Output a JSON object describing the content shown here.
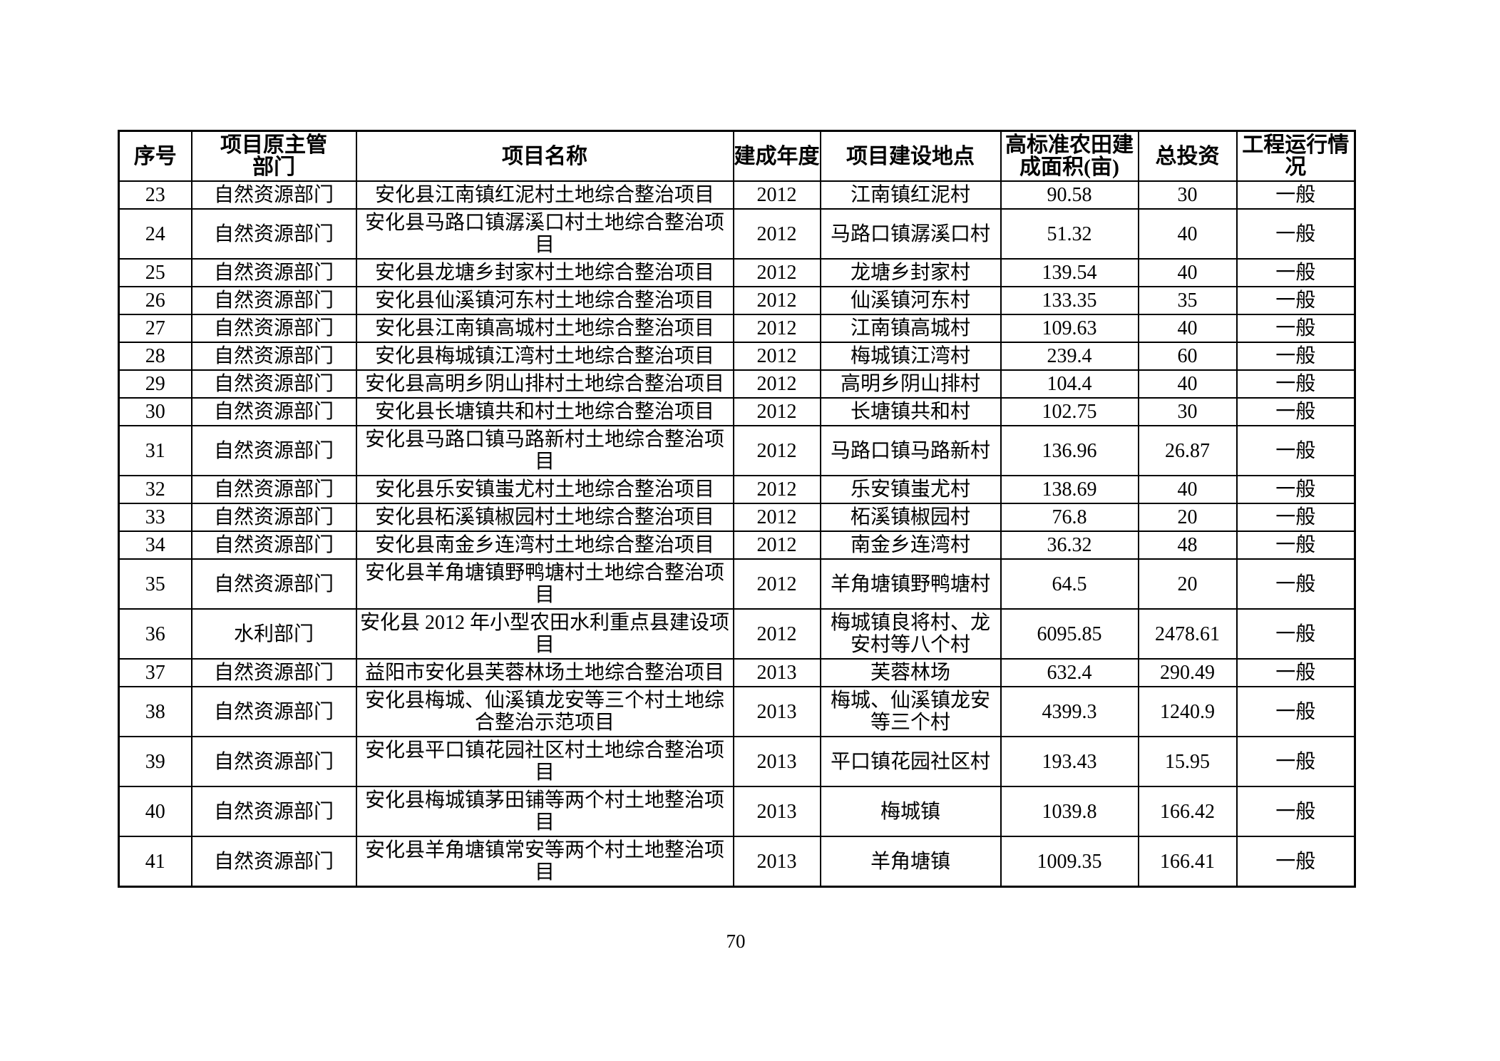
{
  "page": {
    "number": "70"
  },
  "table": {
    "headers": [
      {
        "key": "index",
        "label": "序号"
      },
      {
        "key": "department",
        "label": "项目原主管\n部门"
      },
      {
        "key": "name",
        "label": "项目名称"
      },
      {
        "key": "year",
        "label": "建成年度"
      },
      {
        "key": "location",
        "label": "项目建设地点"
      },
      {
        "key": "area",
        "label": "高标准农田建\n成面积(亩)"
      },
      {
        "key": "investment",
        "label": "总投资"
      },
      {
        "key": "status",
        "label": "工程运行情\n况"
      }
    ],
    "rows": [
      [
        "23",
        "自然资源部门",
        "安化县江南镇红泥村土地综合整治项目",
        "2012",
        "江南镇红泥村",
        "90.58",
        "30",
        "一般"
      ],
      [
        "24",
        "自然资源部门",
        "安化县马路口镇潺溪口村土地综合整治项目",
        "2012",
        "马路口镇潺溪口村",
        "51.32",
        "40",
        "一般"
      ],
      [
        "25",
        "自然资源部门",
        "安化县龙塘乡封家村土地综合整治项目",
        "2012",
        "龙塘乡封家村",
        "139.54",
        "40",
        "一般"
      ],
      [
        "26",
        "自然资源部门",
        "安化县仙溪镇河东村土地综合整治项目",
        "2012",
        "仙溪镇河东村",
        "133.35",
        "35",
        "一般"
      ],
      [
        "27",
        "自然资源部门",
        "安化县江南镇高城村土地综合整治项目",
        "2012",
        "江南镇高城村",
        "109.63",
        "40",
        "一般"
      ],
      [
        "28",
        "自然资源部门",
        "安化县梅城镇江湾村土地综合整治项目",
        "2012",
        "梅城镇江湾村",
        "239.4",
        "60",
        "一般"
      ],
      [
        "29",
        "自然资源部门",
        "安化县高明乡阴山排村土地综合整治项目",
        "2012",
        "高明乡阴山排村",
        "104.4",
        "40",
        "一般"
      ],
      [
        "30",
        "自然资源部门",
        "安化县长塘镇共和村土地综合整治项目",
        "2012",
        "长塘镇共和村",
        "102.75",
        "30",
        "一般"
      ],
      [
        "31",
        "自然资源部门",
        "安化县马路口镇马路新村土地综合整治项目",
        "2012",
        "马路口镇马路新村",
        "136.96",
        "26.87",
        "一般"
      ],
      [
        "32",
        "自然资源部门",
        "安化县乐安镇蚩尤村土地综合整治项目",
        "2012",
        "乐安镇蚩尤村",
        "138.69",
        "40",
        "一般"
      ],
      [
        "33",
        "自然资源部门",
        "安化县柘溪镇椒园村土地综合整治项目",
        "2012",
        "柘溪镇椒园村",
        "76.8",
        "20",
        "一般"
      ],
      [
        "34",
        "自然资源部门",
        "安化县南金乡连湾村土地综合整治项目",
        "2012",
        "南金乡连湾村",
        "36.32",
        "48",
        "一般"
      ],
      [
        "35",
        "自然资源部门",
        "安化县羊角塘镇野鸭塘村土地综合整治项目",
        "2012",
        "羊角塘镇野鸭塘村",
        "64.5",
        "20",
        "一般"
      ],
      [
        "36",
        "水利部门",
        "安化县 2012 年小型农田水利重点县建设项目",
        "2012",
        "梅城镇良将村、龙安村等八个村",
        "6095.85",
        "2478.61",
        "一般"
      ],
      [
        "37",
        "自然资源部门",
        "益阳市安化县芙蓉林场土地综合整治项目",
        "2013",
        "芙蓉林场",
        "632.4",
        "290.49",
        "一般"
      ],
      [
        "38",
        "自然资源部门",
        "安化县梅城、仙溪镇龙安等三个村土地综合整治示范项目",
        "2013",
        "梅城、仙溪镇龙安等三个村",
        "4399.3",
        "1240.9",
        "一般"
      ],
      [
        "39",
        "自然资源部门",
        "安化县平口镇花园社区村土地综合整治项目",
        "2013",
        "平口镇花园社区村",
        "193.43",
        "15.95",
        "一般"
      ],
      [
        "40",
        "自然资源部门",
        "安化县梅城镇茅田铺等两个村土地整治项目",
        "2013",
        "梅城镇",
        "1039.8",
        "166.42",
        "一般"
      ],
      [
        "41",
        "自然资源部门",
        "安化县羊角塘镇常安等两个村土地整治项目",
        "2013",
        "羊角塘镇",
        "1009.35",
        "166.41",
        "一般"
      ]
    ]
  }
}
